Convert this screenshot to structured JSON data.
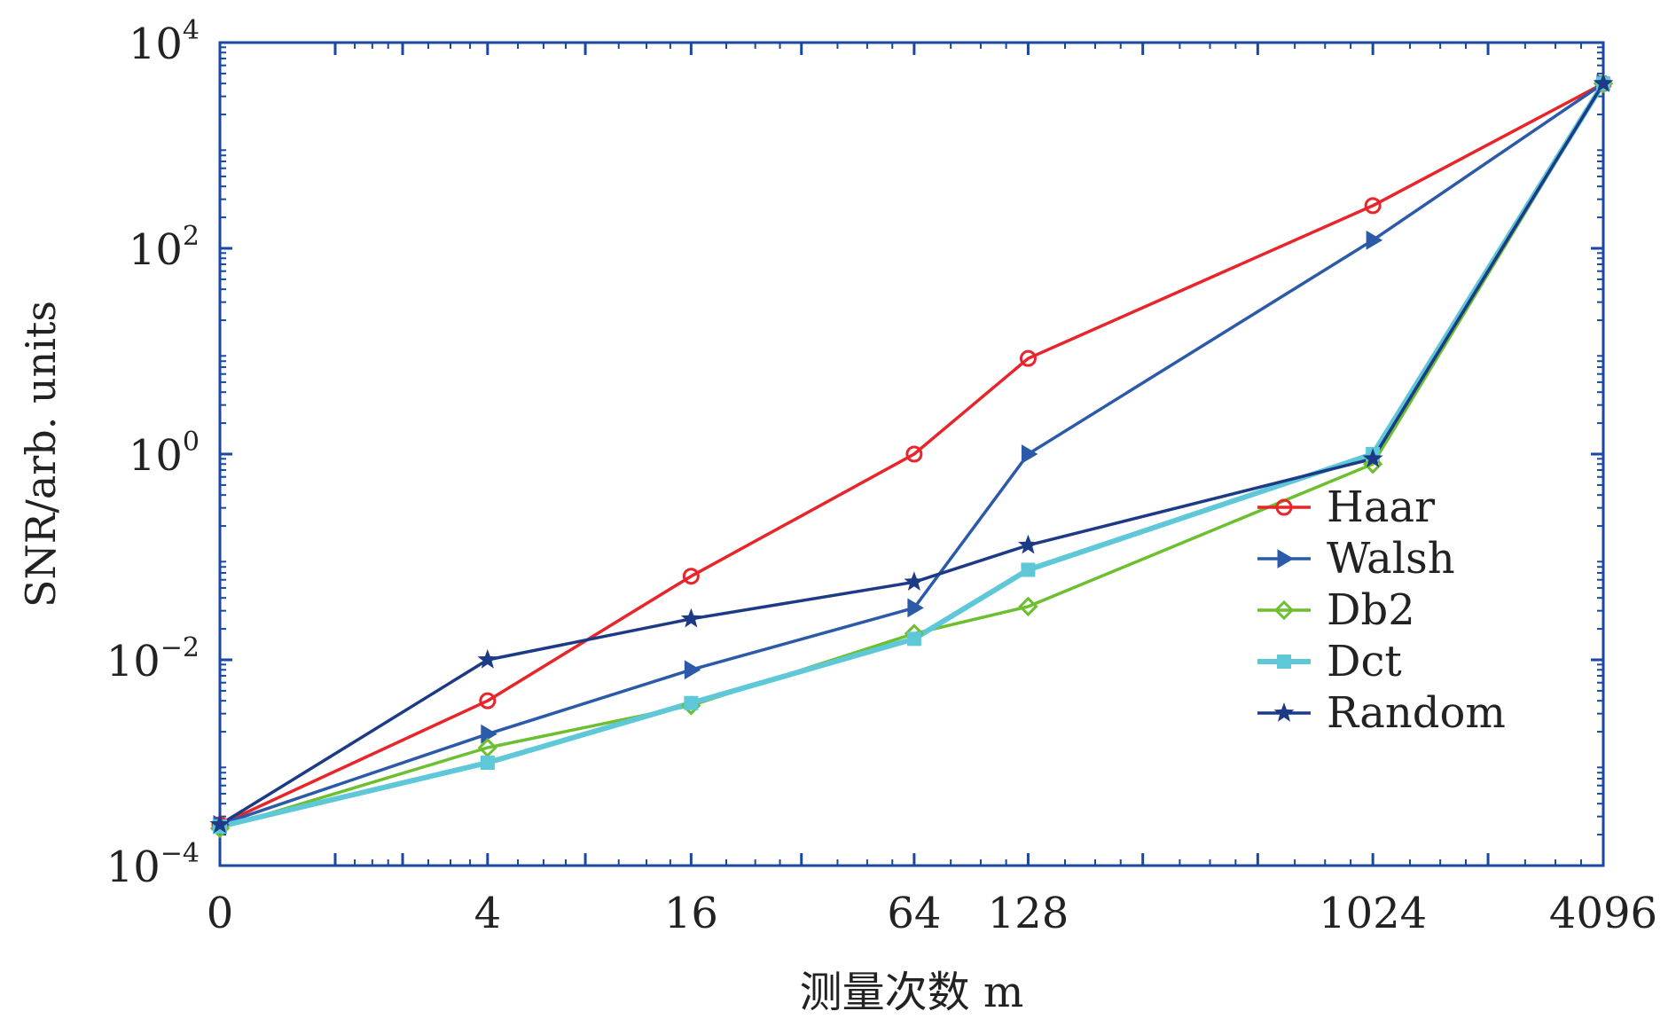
{
  "chart_data": {
    "type": "line",
    "xlabel": "测量次数 m",
    "ylabel": "SNR/arb. units",
    "x_scale": "log2(x+1)",
    "y_scale": "log",
    "xlim": [
      0,
      4096
    ],
    "ylim": [
      0.0001,
      10000
    ],
    "x": [
      0,
      4,
      16,
      64,
      128,
      1024,
      4096
    ],
    "x_ticks": [
      0,
      4,
      16,
      64,
      128,
      1024,
      4096
    ],
    "x_tick_labels": [
      "0",
      "4",
      "16",
      "64",
      "128",
      "1024",
      "4096"
    ],
    "y_ticks": [
      0.0001,
      0.01,
      1,
      100,
      10000
    ],
    "y_tick_labels": [
      {
        "base": "10",
        "exp": "−4"
      },
      {
        "base": "10",
        "exp": "−2"
      },
      {
        "base": "10",
        "exp": "0"
      },
      {
        "base": "10",
        "exp": "2"
      },
      {
        "base": "10",
        "exp": "4"
      }
    ],
    "legend_position": "right",
    "series": [
      {
        "name": "Haar",
        "color": "#e8252a",
        "marker": "circle",
        "values": [
          0.00025,
          0.004,
          0.065,
          1.0,
          8.5,
          260,
          4000
        ]
      },
      {
        "name": "Walsh",
        "color": "#2b5aa8",
        "marker": "triangle-right",
        "values": [
          0.00025,
          0.0019,
          0.008,
          0.032,
          1.0,
          120,
          4000
        ]
      },
      {
        "name": "Db2",
        "color": "#6cbf2e",
        "marker": "diamond",
        "values": [
          0.00023,
          0.0014,
          0.0036,
          0.018,
          0.033,
          0.8,
          4000
        ]
      },
      {
        "name": "Dct",
        "color": "#5ec7d8",
        "marker": "square",
        "values": [
          0.00024,
          0.001,
          0.0038,
          0.016,
          0.075,
          1.0,
          4000
        ]
      },
      {
        "name": "Random",
        "color": "#1c3a85",
        "marker": "star",
        "values": [
          0.00025,
          0.01,
          0.025,
          0.057,
          0.13,
          0.9,
          4000
        ]
      }
    ]
  }
}
